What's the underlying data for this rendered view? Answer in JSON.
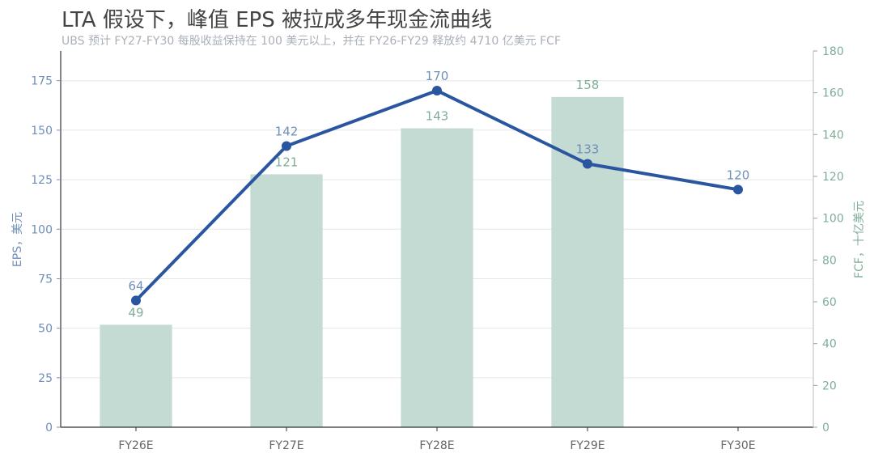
{
  "header": {
    "title": "LTA 假设下，峰值 EPS 被拉成多年现金流曲线",
    "subtitle": "UBS 预计 FY27-FY30 每股收益保持在 100 美元以上，并在 FY26-FY29 释放约 4710 亿美元 FCF"
  },
  "colors": {
    "eps_line": "#2a56a0",
    "fcf_bar": "#c3dbd3",
    "left_axis_text": "#6f8fb8",
    "right_axis_text": "#7fae99",
    "grid": "#e6e6e6"
  },
  "chart_data": {
    "type": "bar",
    "categories": [
      "FY26E",
      "FY27E",
      "FY28E",
      "FY29E",
      "FY30E"
    ],
    "series": [
      {
        "type": "line",
        "axis": "left",
        "values": [
          64,
          142,
          170,
          133,
          120
        ]
      },
      {
        "type": "bar",
        "axis": "right",
        "values": [
          49,
          121,
          143,
          158,
          null
        ]
      }
    ],
    "ylabel_left": "EPS，美元",
    "ylabel_right": "FCF，十亿美元",
    "ylim_left": [
      0,
      190
    ],
    "ylim_right": [
      0,
      180
    ],
    "yticks_left": [
      0,
      25,
      50,
      75,
      100,
      125,
      150,
      175
    ],
    "yticks_right": [
      0,
      20,
      40,
      60,
      80,
      100,
      120,
      140,
      160,
      180
    ],
    "grid": true
  }
}
